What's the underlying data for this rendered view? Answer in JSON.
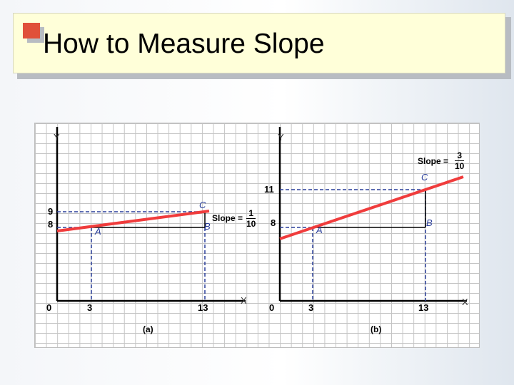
{
  "slide": {
    "title": "How to Measure Slope"
  },
  "colors": {
    "title_bg": "#ffffd9",
    "bullet": "#e0503a",
    "line": "#f03c3c",
    "guides": "#2a3e9a",
    "grid": "#c4c4c4"
  },
  "chart_data": [
    {
      "type": "line",
      "panel_label": "(a)",
      "xlabel": "X",
      "ylabel": "Y",
      "x_ticks": [
        "0",
        "3",
        "13"
      ],
      "y_ticks": [
        "0",
        "8",
        "9"
      ],
      "series": [
        {
          "x": [
            0,
            3,
            13
          ],
          "y": [
            7.7,
            8,
            9
          ]
        }
      ],
      "points": [
        {
          "label": "A",
          "x": 3,
          "y": 8
        },
        {
          "label": "B",
          "x": 13,
          "y": 8
        },
        {
          "label": "C",
          "x": 13,
          "y": 9
        }
      ],
      "slope": {
        "prefix": "Slope =",
        "numerator": "1",
        "denominator": "10"
      },
      "grid": true
    },
    {
      "type": "line",
      "panel_label": "(b)",
      "xlabel": "X",
      "ylabel": "Y",
      "x_ticks": [
        "0",
        "3",
        "13"
      ],
      "y_ticks": [
        "0",
        "8",
        "11"
      ],
      "series": [
        {
          "x": [
            0,
            3,
            13,
            16.4
          ],
          "y": [
            7.1,
            8,
            11,
            12
          ]
        }
      ],
      "points": [
        {
          "label": "A",
          "x": 3,
          "y": 8
        },
        {
          "label": "B",
          "x": 13,
          "y": 8
        },
        {
          "label": "C",
          "x": 13,
          "y": 11
        }
      ],
      "slope": {
        "prefix": "Slope =",
        "numerator": "3",
        "denominator": "10"
      },
      "grid": true
    }
  ]
}
